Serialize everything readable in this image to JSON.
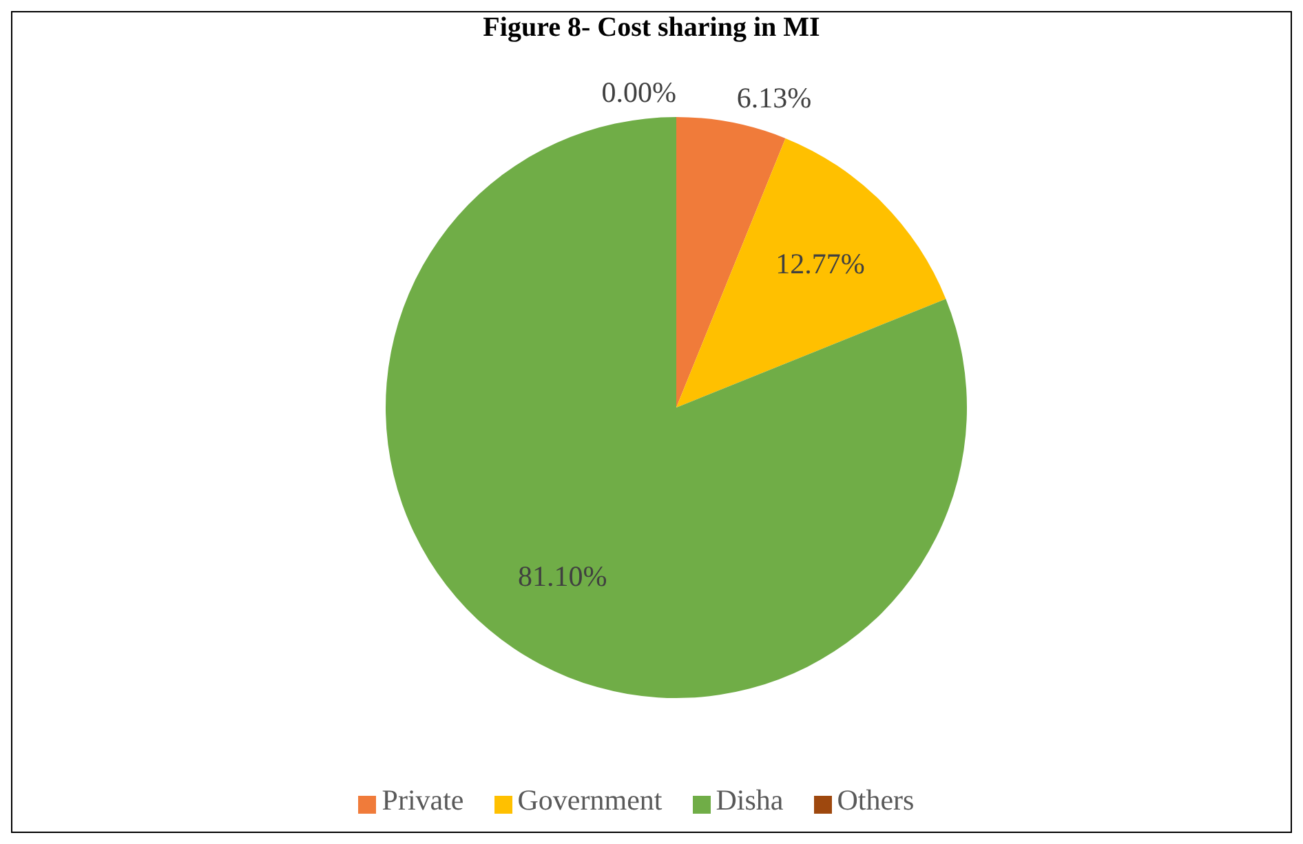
{
  "chart_data": {
    "type": "pie",
    "title": "Figure 8- Cost sharing in MI",
    "categories": [
      "Private",
      "Government",
      "Disha",
      "Others"
    ],
    "values": [
      6.13,
      12.77,
      81.1,
      0
    ],
    "value_labels": [
      "6.13%",
      "12.77%",
      "81.10%",
      "0.00%"
    ],
    "colors": [
      "#f07b3a",
      "#ffc000",
      "#70ad47",
      "#9e480e"
    ],
    "legend": "bottom"
  }
}
